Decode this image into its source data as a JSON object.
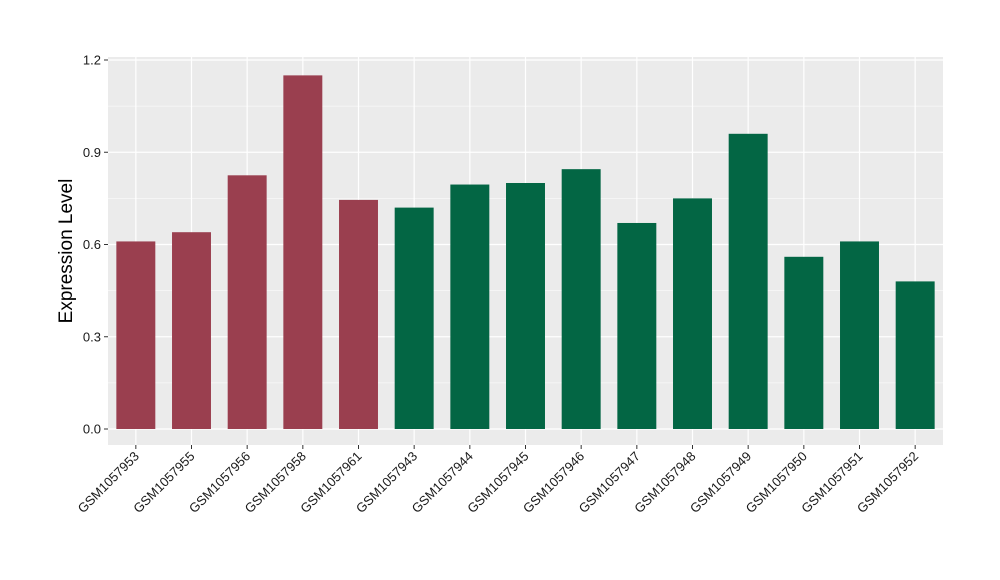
{
  "chart_data": {
    "type": "bar",
    "title": "",
    "xlabel": "",
    "ylabel": "Expression Level",
    "ylim": [
      -0.05,
      1.2
    ],
    "yticks": [
      0.0,
      0.3,
      0.6,
      0.9,
      1.2
    ],
    "ytick_labels": [
      "0.0",
      "0.3",
      "0.6",
      "0.9",
      "1.2"
    ],
    "grid": true,
    "legend": "none",
    "categories": [
      "GSM1057953",
      "GSM1057955",
      "GSM1057956",
      "GSM1057958",
      "GSM1057961",
      "GSM1057943",
      "GSM1057944",
      "GSM1057945",
      "GSM1057946",
      "GSM1057947",
      "GSM1057948",
      "GSM1057949",
      "GSM1057950",
      "GSM1057951",
      "GSM1057952"
    ],
    "values": [
      0.61,
      0.64,
      0.825,
      1.15,
      0.745,
      0.72,
      0.795,
      0.8,
      0.845,
      0.67,
      0.75,
      0.96,
      0.56,
      0.61,
      0.48
    ],
    "colors": [
      "#9a3f4f",
      "#9a3f4f",
      "#9a3f4f",
      "#9a3f4f",
      "#9a3f4f",
      "#036644",
      "#036644",
      "#036644",
      "#036644",
      "#036644",
      "#036644",
      "#036644",
      "#036644",
      "#036644",
      "#036644"
    ],
    "panel_background": "#ebebeb",
    "grid_color": "#ffffff"
  }
}
